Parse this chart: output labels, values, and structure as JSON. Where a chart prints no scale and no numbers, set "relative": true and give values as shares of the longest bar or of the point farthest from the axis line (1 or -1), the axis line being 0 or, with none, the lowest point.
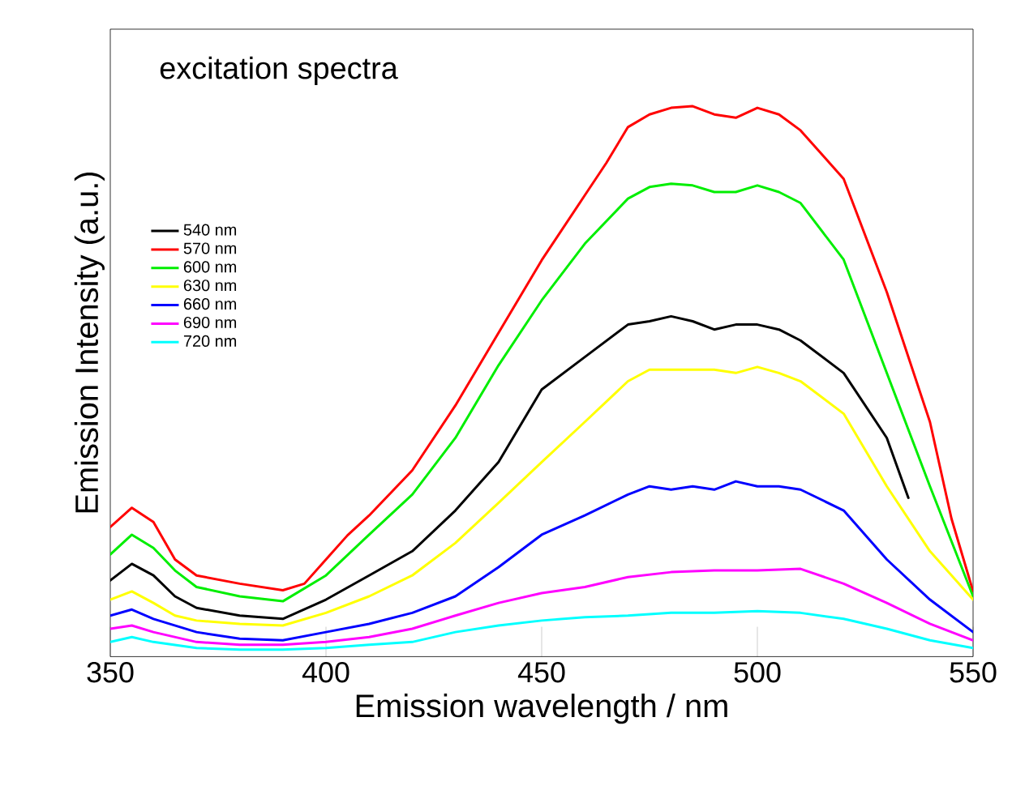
{
  "chart_data": {
    "type": "line",
    "title": "excitation spectra",
    "xlabel": "Emission wavelength / nm",
    "ylabel": "Emission Intensity (a.u.)",
    "relative": true,
    "xlim": [
      350,
      550
    ],
    "xticks": [
      350,
      400,
      450,
      500,
      550
    ],
    "legend": "top left",
    "series": [
      {
        "name": "540 nm",
        "color": "#000000",
        "x": [
          350,
          355,
          360,
          365,
          370,
          380,
          390,
          400,
          410,
          420,
          430,
          440,
          450,
          460,
          470,
          475,
          480,
          485,
          490,
          495,
          500,
          505,
          510,
          520,
          530,
          535
        ],
        "values": [
          0.138,
          0.168,
          0.147,
          0.109,
          0.088,
          0.074,
          0.068,
          0.103,
          0.147,
          0.191,
          0.265,
          0.353,
          0.485,
          0.544,
          0.603,
          0.609,
          0.618,
          0.609,
          0.594,
          0.603,
          0.603,
          0.594,
          0.574,
          0.515,
          0.397,
          0.288
        ]
      },
      {
        "name": "570 nm",
        "color": "#ff0000",
        "x": [
          350,
          355,
          360,
          365,
          370,
          380,
          390,
          395,
          400,
          405,
          410,
          420,
          430,
          440,
          450,
          460,
          465,
          470,
          475,
          480,
          485,
          490,
          495,
          500,
          505,
          510,
          520,
          530,
          540,
          545,
          550
        ],
        "values": [
          0.235,
          0.27,
          0.244,
          0.176,
          0.147,
          0.132,
          0.12,
          0.132,
          0.176,
          0.22,
          0.256,
          0.338,
          0.456,
          0.588,
          0.72,
          0.838,
          0.897,
          0.962,
          0.985,
          0.997,
          1.0,
          0.985,
          0.979,
          0.997,
          0.985,
          0.956,
          0.868,
          0.662,
          0.426,
          0.25,
          0.118
        ]
      },
      {
        "name": "600 nm",
        "color": "#00ee00",
        "x": [
          350,
          355,
          360,
          365,
          370,
          380,
          390,
          400,
          410,
          420,
          430,
          440,
          450,
          460,
          470,
          475,
          480,
          485,
          490,
          495,
          500,
          505,
          510,
          520,
          530,
          540,
          550
        ],
        "values": [
          0.185,
          0.221,
          0.197,
          0.156,
          0.126,
          0.109,
          0.1,
          0.147,
          0.221,
          0.294,
          0.397,
          0.529,
          0.647,
          0.75,
          0.832,
          0.853,
          0.859,
          0.856,
          0.844,
          0.844,
          0.856,
          0.844,
          0.824,
          0.721,
          0.515,
          0.309,
          0.109
        ]
      },
      {
        "name": "630 nm",
        "color": "#ffff00",
        "x": [
          350,
          355,
          360,
          365,
          370,
          380,
          390,
          400,
          410,
          420,
          430,
          440,
          450,
          460,
          470,
          475,
          480,
          490,
          495,
          500,
          505,
          510,
          520,
          530,
          540,
          550
        ],
        "values": [
          0.103,
          0.118,
          0.097,
          0.074,
          0.065,
          0.059,
          0.056,
          0.079,
          0.109,
          0.147,
          0.206,
          0.279,
          0.353,
          0.426,
          0.5,
          0.521,
          0.521,
          0.521,
          0.515,
          0.526,
          0.515,
          0.5,
          0.441,
          0.309,
          0.191,
          0.103
        ]
      },
      {
        "name": "660 nm",
        "color": "#0000ff",
        "x": [
          350,
          355,
          360,
          370,
          380,
          390,
          400,
          410,
          420,
          430,
          440,
          450,
          460,
          470,
          475,
          480,
          485,
          490,
          495,
          500,
          505,
          510,
          520,
          530,
          540,
          550
        ],
        "values": [
          0.074,
          0.085,
          0.068,
          0.044,
          0.032,
          0.029,
          0.044,
          0.059,
          0.079,
          0.109,
          0.162,
          0.221,
          0.256,
          0.294,
          0.309,
          0.303,
          0.309,
          0.303,
          0.318,
          0.309,
          0.309,
          0.303,
          0.265,
          0.176,
          0.103,
          0.044
        ]
      },
      {
        "name": "690 nm",
        "color": "#ff00ff",
        "x": [
          350,
          355,
          360,
          370,
          380,
          390,
          400,
          410,
          420,
          430,
          440,
          450,
          460,
          470,
          480,
          490,
          500,
          510,
          520,
          530,
          540,
          550
        ],
        "values": [
          0.05,
          0.056,
          0.044,
          0.026,
          0.021,
          0.021,
          0.026,
          0.035,
          0.05,
          0.074,
          0.097,
          0.115,
          0.126,
          0.144,
          0.153,
          0.156,
          0.156,
          0.159,
          0.132,
          0.097,
          0.059,
          0.029
        ]
      },
      {
        "name": "720 nm",
        "color": "#00ffff",
        "x": [
          350,
          355,
          360,
          370,
          380,
          390,
          400,
          410,
          420,
          430,
          440,
          450,
          460,
          470,
          480,
          490,
          500,
          510,
          520,
          530,
          540,
          550
        ],
        "values": [
          0.026,
          0.035,
          0.026,
          0.015,
          0.012,
          0.012,
          0.015,
          0.021,
          0.026,
          0.044,
          0.056,
          0.065,
          0.071,
          0.074,
          0.079,
          0.079,
          0.082,
          0.079,
          0.068,
          0.05,
          0.029,
          0.015
        ]
      }
    ]
  }
}
